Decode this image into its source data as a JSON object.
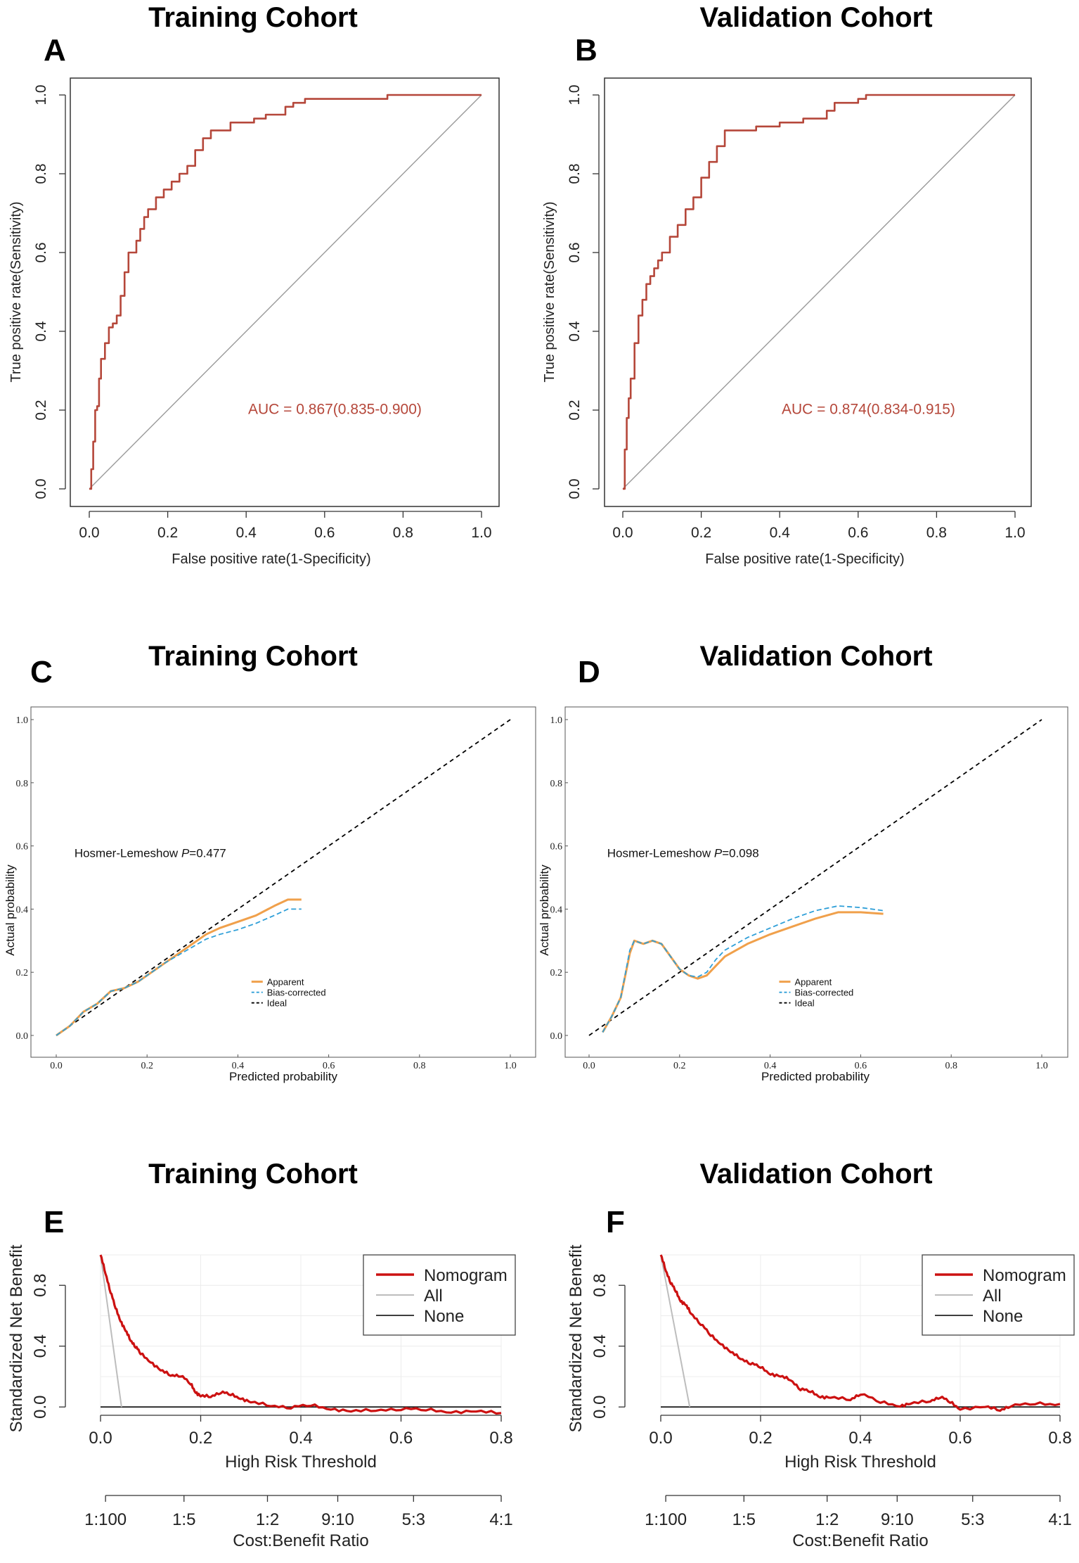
{
  "colors": {
    "roc": "#b5473a",
    "diag": "#9a9a9a",
    "apparent": "#f0a04b",
    "bias": "#2f9fd8",
    "ideal": "#000000",
    "nomogram": "#cc1111",
    "all": "#bdbdbd",
    "none": "#222222"
  },
  "chart_data": [
    {
      "id": "A",
      "type": "line",
      "panel_label": "A",
      "title": "Training Cohort",
      "xlabel": "False positive rate(1-Specificity)",
      "ylabel": "True positive rate(Sensitivity)",
      "xlim": [
        0,
        1
      ],
      "ylim": [
        0,
        1
      ],
      "xticks": [
        "0.0",
        "0.2",
        "0.4",
        "0.6",
        "0.8",
        "1.0"
      ],
      "yticks": [
        "0.0",
        "0.2",
        "0.4",
        "0.6",
        "0.8",
        "1.0"
      ],
      "annotation": "AUC = 0.867(0.835-0.900)",
      "series": [
        {
          "name": "ROC",
          "x": [
            0,
            0.005,
            0.01,
            0.015,
            0.02,
            0.025,
            0.03,
            0.04,
            0.05,
            0.06,
            0.07,
            0.08,
            0.09,
            0.1,
            0.11,
            0.12,
            0.13,
            0.14,
            0.15,
            0.17,
            0.19,
            0.21,
            0.23,
            0.25,
            0.27,
            0.29,
            0.31,
            0.33,
            0.36,
            0.39,
            0.42,
            0.45,
            0.48,
            0.5,
            0.52,
            0.55,
            0.6,
            0.7,
            0.76,
            0.8,
            0.9,
            1.0
          ],
          "y": [
            0,
            0.05,
            0.12,
            0.2,
            0.21,
            0.28,
            0.33,
            0.37,
            0.41,
            0.42,
            0.44,
            0.49,
            0.55,
            0.6,
            0.6,
            0.63,
            0.66,
            0.69,
            0.71,
            0.74,
            0.76,
            0.78,
            0.8,
            0.82,
            0.86,
            0.89,
            0.91,
            0.91,
            0.93,
            0.93,
            0.94,
            0.95,
            0.95,
            0.97,
            0.98,
            0.99,
            0.99,
            0.99,
            1.0,
            1.0,
            1.0,
            1.0
          ]
        },
        {
          "name": "Reference",
          "x": [
            0,
            1
          ],
          "y": [
            0,
            1
          ]
        }
      ]
    },
    {
      "id": "B",
      "type": "line",
      "panel_label": "B",
      "title": "Validation Cohort",
      "xlabel": "False positive rate(1-Specificity)",
      "ylabel": "True positive rate(Sensitivity)",
      "xlim": [
        0,
        1
      ],
      "ylim": [
        0,
        1
      ],
      "xticks": [
        "0.0",
        "0.2",
        "0.4",
        "0.6",
        "0.8",
        "1.0"
      ],
      "yticks": [
        "0.0",
        "0.2",
        "0.4",
        "0.6",
        "0.8",
        "1.0"
      ],
      "annotation": "AUC = 0.874(0.834-0.915)",
      "series": [
        {
          "name": "ROC",
          "x": [
            0,
            0.005,
            0.01,
            0.015,
            0.02,
            0.03,
            0.04,
            0.05,
            0.06,
            0.07,
            0.08,
            0.09,
            0.1,
            0.12,
            0.14,
            0.16,
            0.18,
            0.2,
            0.22,
            0.24,
            0.26,
            0.3,
            0.34,
            0.4,
            0.46,
            0.52,
            0.54,
            0.6,
            0.62,
            0.7,
            0.8,
            1.0
          ],
          "y": [
            0,
            0.1,
            0.18,
            0.23,
            0.28,
            0.37,
            0.44,
            0.48,
            0.52,
            0.54,
            0.56,
            0.58,
            0.6,
            0.64,
            0.67,
            0.71,
            0.74,
            0.79,
            0.83,
            0.87,
            0.91,
            0.91,
            0.92,
            0.93,
            0.94,
            0.96,
            0.98,
            0.99,
            1.0,
            1.0,
            1.0,
            1.0
          ]
        },
        {
          "name": "Reference",
          "x": [
            0,
            1
          ],
          "y": [
            0,
            1
          ]
        }
      ]
    },
    {
      "id": "C",
      "type": "line",
      "panel_label": "C",
      "title": "Training Cohort",
      "xlabel": "Predicted probability",
      "ylabel": "Actual probability",
      "xlim": [
        0,
        1
      ],
      "ylim": [
        0,
        1
      ],
      "xticks": [
        "0.0",
        "0.2",
        "0.4",
        "0.6",
        "0.8",
        "1.0"
      ],
      "yticks": [
        "0.0",
        "0.2",
        "0.4",
        "0.6",
        "0.8",
        "1.0"
      ],
      "annotation_prefix": "Hosmer-Lemeshow",
      "annotation_p": "P",
      "annotation_value": "=0.477",
      "legend": [
        "Apparent",
        "Bias-corrected",
        "Ideal"
      ],
      "series": [
        {
          "name": "Apparent",
          "x": [
            0,
            0.03,
            0.06,
            0.09,
            0.12,
            0.15,
            0.18,
            0.21,
            0.24,
            0.27,
            0.3,
            0.33,
            0.36,
            0.4,
            0.44,
            0.48,
            0.51,
            0.54
          ],
          "y": [
            0,
            0.03,
            0.075,
            0.1,
            0.14,
            0.15,
            0.17,
            0.2,
            0.23,
            0.26,
            0.29,
            0.32,
            0.34,
            0.36,
            0.38,
            0.41,
            0.43,
            0.43
          ]
        },
        {
          "name": "Bias-corrected",
          "x": [
            0,
            0.03,
            0.06,
            0.09,
            0.12,
            0.15,
            0.18,
            0.21,
            0.24,
            0.27,
            0.3,
            0.33,
            0.36,
            0.4,
            0.44,
            0.48,
            0.51,
            0.54
          ],
          "y": [
            0,
            0.03,
            0.075,
            0.1,
            0.14,
            0.15,
            0.17,
            0.2,
            0.23,
            0.255,
            0.28,
            0.305,
            0.32,
            0.335,
            0.355,
            0.38,
            0.4,
            0.4
          ]
        },
        {
          "name": "Ideal",
          "x": [
            0,
            1
          ],
          "y": [
            0,
            1
          ]
        }
      ]
    },
    {
      "id": "D",
      "type": "line",
      "panel_label": "D",
      "title": "Validation Cohort",
      "xlabel": "Predicted probability",
      "ylabel": "Actual probability",
      "xlim": [
        0,
        1
      ],
      "ylim": [
        0,
        1
      ],
      "xticks": [
        "0.0",
        "0.2",
        "0.4",
        "0.6",
        "0.8",
        "1.0"
      ],
      "yticks": [
        "0.0",
        "0.2",
        "0.4",
        "0.6",
        "0.8",
        "1.0"
      ],
      "annotation_prefix": "Hosmer-Lemeshow",
      "annotation_p": "P",
      "annotation_value": "=0.098",
      "legend": [
        "Apparent",
        "Bias-corrected",
        "Ideal"
      ],
      "series": [
        {
          "name": "Apparent",
          "x": [
            0.03,
            0.05,
            0.07,
            0.09,
            0.1,
            0.12,
            0.14,
            0.16,
            0.18,
            0.2,
            0.22,
            0.24,
            0.26,
            0.28,
            0.3,
            0.35,
            0.4,
            0.45,
            0.5,
            0.55,
            0.6,
            0.65
          ],
          "y": [
            0.01,
            0.06,
            0.12,
            0.26,
            0.3,
            0.29,
            0.3,
            0.29,
            0.25,
            0.21,
            0.19,
            0.18,
            0.19,
            0.22,
            0.25,
            0.29,
            0.32,
            0.345,
            0.37,
            0.39,
            0.39,
            0.385
          ]
        },
        {
          "name": "Bias-corrected",
          "x": [
            0.03,
            0.05,
            0.07,
            0.09,
            0.1,
            0.12,
            0.14,
            0.16,
            0.18,
            0.2,
            0.22,
            0.24,
            0.26,
            0.28,
            0.3,
            0.35,
            0.4,
            0.45,
            0.5,
            0.55,
            0.6,
            0.65
          ],
          "y": [
            0.01,
            0.06,
            0.12,
            0.27,
            0.3,
            0.29,
            0.3,
            0.29,
            0.25,
            0.21,
            0.19,
            0.185,
            0.2,
            0.24,
            0.27,
            0.31,
            0.34,
            0.37,
            0.395,
            0.41,
            0.405,
            0.395
          ]
        },
        {
          "name": "Ideal",
          "x": [
            0,
            1
          ],
          "y": [
            0,
            1
          ]
        }
      ]
    },
    {
      "id": "E",
      "type": "line",
      "panel_label": "E",
      "title": "Training Cohort",
      "xlabel": "High Risk Threshold",
      "ylabel": "Standardized Net Benefit",
      "xlabel2": "Cost:Benefit Ratio",
      "xlim": [
        0,
        0.8
      ],
      "ylim": [
        -0.05,
        1.0
      ],
      "xticks": [
        "0.0",
        "0.2",
        "0.4",
        "0.6",
        "0.8"
      ],
      "yticks": [
        "0.0",
        "0.4",
        "0.8"
      ],
      "cost_benefit_ticks": [
        "1:100",
        "1:5",
        "1:2",
        "9:10",
        "5:3",
        "4:1"
      ],
      "legend": [
        "Nomogram",
        "All",
        "None"
      ],
      "series": [
        {
          "name": "Nomogram",
          "x": [
            0,
            0.01,
            0.02,
            0.03,
            0.04,
            0.05,
            0.06,
            0.07,
            0.08,
            0.1,
            0.12,
            0.14,
            0.16,
            0.18,
            0.19,
            0.2,
            0.22,
            0.24,
            0.26,
            0.28,
            0.3,
            0.34,
            0.38,
            0.42,
            0.46,
            0.5,
            0.55,
            0.6,
            0.65,
            0.7,
            0.75,
            0.8
          ],
          "y": [
            1.0,
            0.88,
            0.76,
            0.65,
            0.57,
            0.5,
            0.44,
            0.4,
            0.35,
            0.3,
            0.24,
            0.21,
            0.21,
            0.15,
            0.1,
            0.07,
            0.07,
            0.1,
            0.08,
            0.06,
            0.03,
            0.01,
            0.0,
            0.01,
            -0.01,
            -0.03,
            -0.02,
            -0.01,
            -0.02,
            -0.03,
            -0.03,
            -0.04
          ]
        },
        {
          "name": "All",
          "x": [
            0,
            0.042
          ],
          "y": [
            1.0,
            0.0
          ]
        },
        {
          "name": "None",
          "x": [
            0,
            0.8
          ],
          "y": [
            0,
            0
          ]
        }
      ]
    },
    {
      "id": "F",
      "type": "line",
      "panel_label": "F",
      "title": "Validation Cohort",
      "xlabel": "High Risk Threshold",
      "ylabel": "Standardized Net Benefit",
      "xlabel2": "Cost:Benefit Ratio",
      "xlim": [
        0,
        0.8
      ],
      "ylim": [
        -0.05,
        1.0
      ],
      "xticks": [
        "0.0",
        "0.2",
        "0.4",
        "0.6",
        "0.8"
      ],
      "yticks": [
        "0.0",
        "0.4",
        "0.8"
      ],
      "cost_benefit_ticks": [
        "1:100",
        "1:5",
        "1:2",
        "9:10",
        "5:3",
        "4:1"
      ],
      "legend": [
        "Nomogram",
        "All",
        "None"
      ],
      "series": [
        {
          "name": "Nomogram",
          "x": [
            0,
            0.01,
            0.02,
            0.03,
            0.04,
            0.05,
            0.06,
            0.08,
            0.1,
            0.12,
            0.14,
            0.16,
            0.18,
            0.2,
            0.22,
            0.24,
            0.26,
            0.28,
            0.3,
            0.32,
            0.34,
            0.38,
            0.4,
            0.44,
            0.48,
            0.5,
            0.54,
            0.56,
            0.58,
            0.6,
            0.65,
            0.68,
            0.7,
            0.75,
            0.8
          ],
          "y": [
            1.0,
            0.9,
            0.82,
            0.76,
            0.7,
            0.67,
            0.62,
            0.55,
            0.47,
            0.42,
            0.36,
            0.32,
            0.29,
            0.26,
            0.22,
            0.2,
            0.18,
            0.12,
            0.1,
            0.07,
            0.06,
            0.05,
            0.09,
            0.03,
            0.01,
            0.02,
            0.04,
            0.07,
            0.03,
            -0.01,
            0.0,
            -0.02,
            0.01,
            0.02,
            0.02
          ]
        },
        {
          "name": "All",
          "x": [
            0,
            0.058
          ],
          "y": [
            1.0,
            0.0
          ]
        },
        {
          "name": "None",
          "x": [
            0,
            0.8
          ],
          "y": [
            0,
            0
          ]
        }
      ]
    }
  ]
}
